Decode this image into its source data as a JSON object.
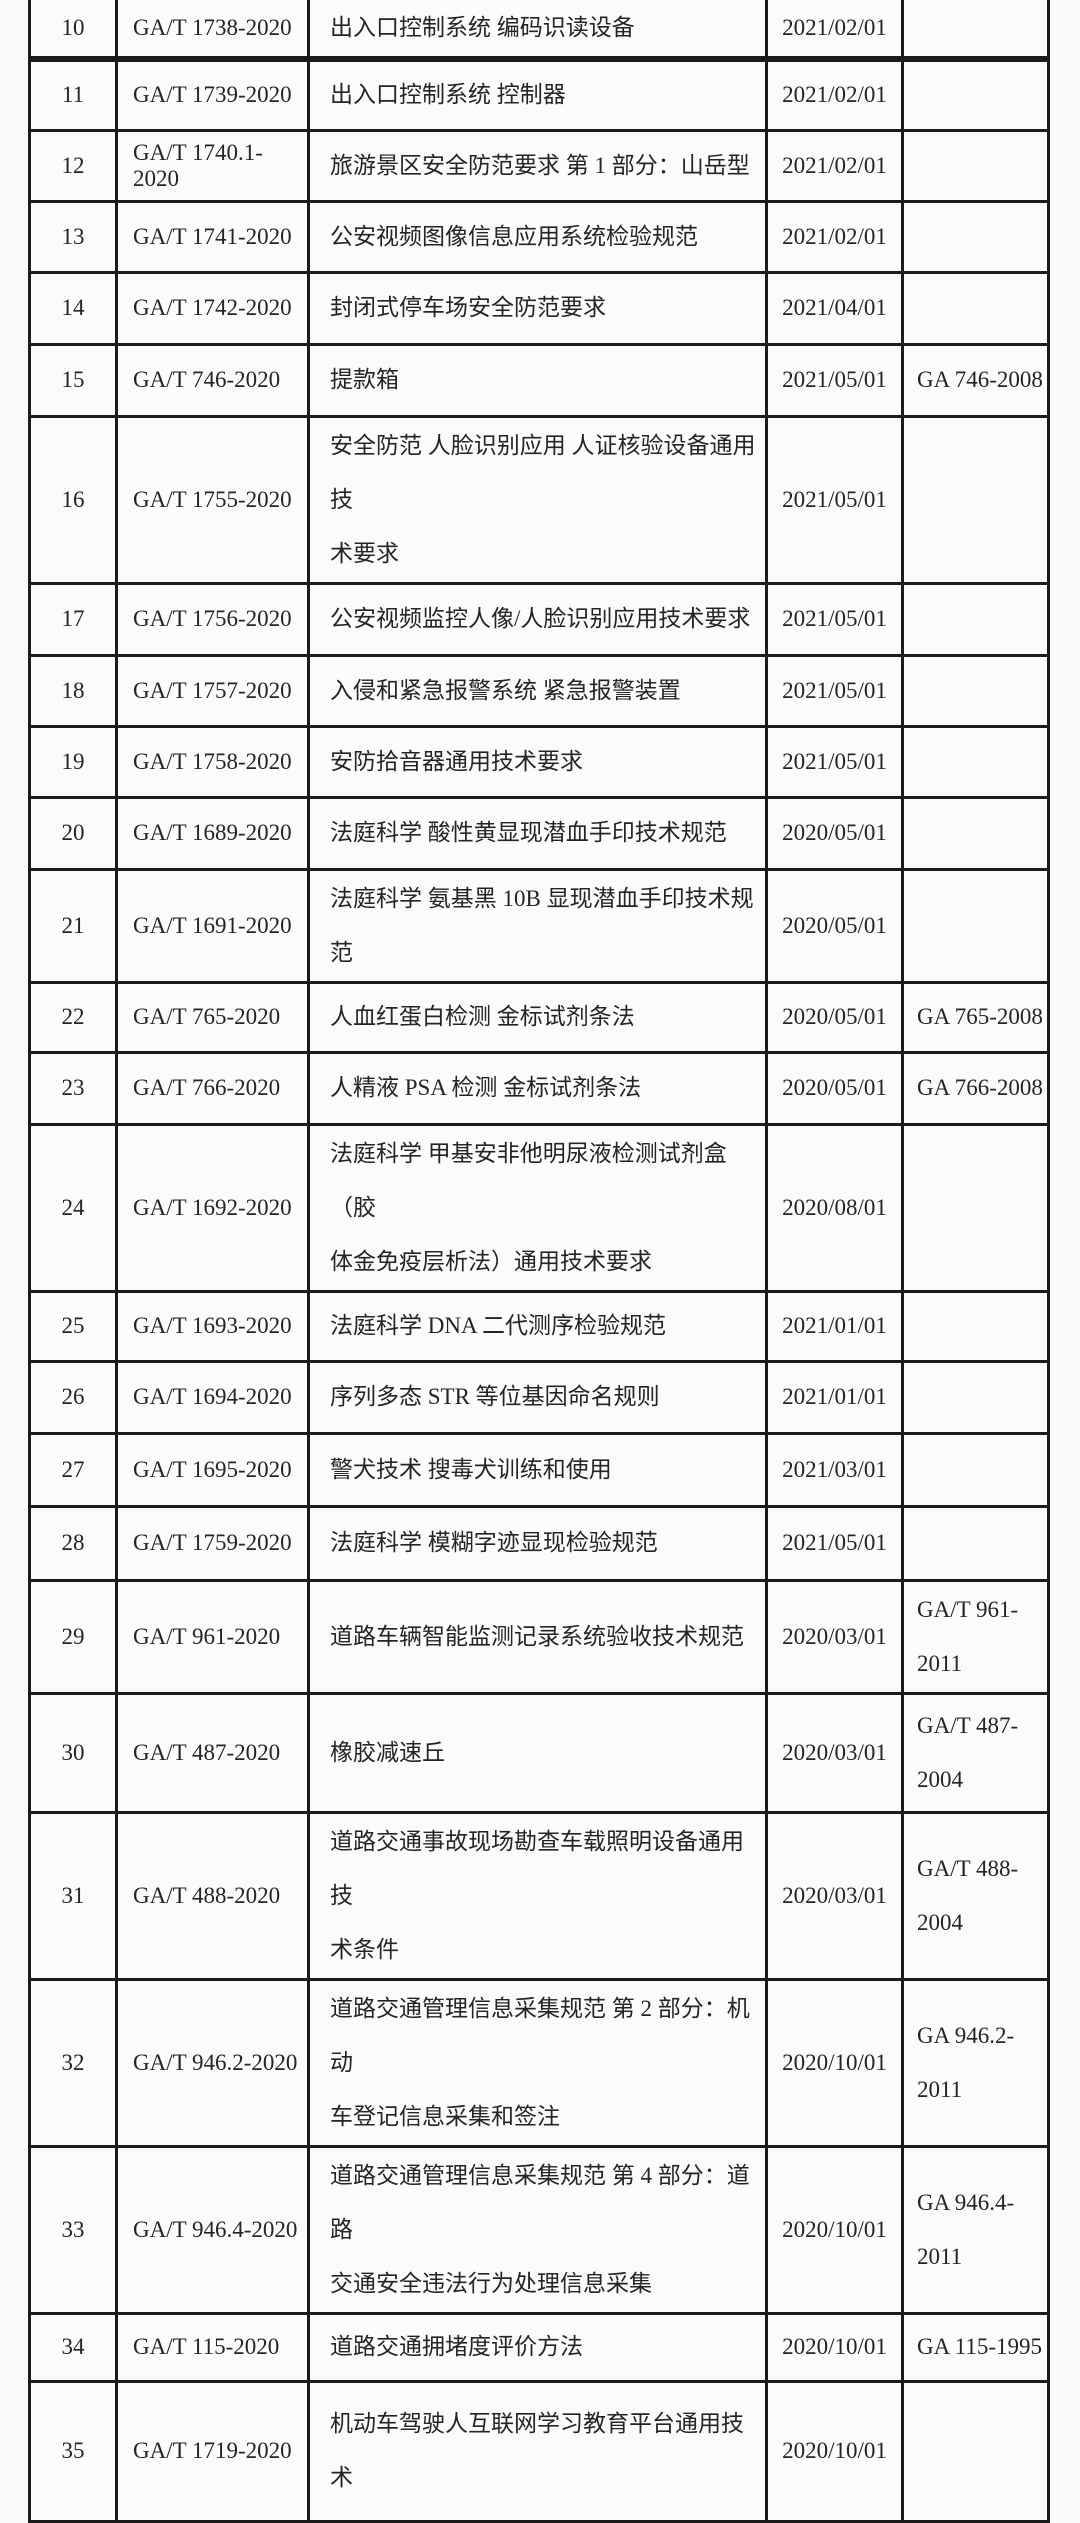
{
  "colors": {
    "paper": "#f9f9f9",
    "grid_ink": "#1b1b1b",
    "text": "#242424"
  },
  "table": {
    "rows": [
      {
        "no": "10",
        "code": "GA/T 1738-2020",
        "name": "出入口控制系统 编码识读设备",
        "date": "2021/02/01",
        "replaces": ""
      },
      {
        "no": "11",
        "code": "GA/T 1739-2020",
        "name": "出入口控制系统 控制器",
        "date": "2021/02/01",
        "replaces": ""
      },
      {
        "no": "12",
        "code": "GA/T 1740.1-2020",
        "name": "旅游景区安全防范要求 第 1 部分：山岳型",
        "date": "2021/02/01",
        "replaces": ""
      },
      {
        "no": "13",
        "code": "GA/T 1741-2020",
        "name": "公安视频图像信息应用系统检验规范",
        "date": "2021/02/01",
        "replaces": ""
      },
      {
        "no": "14",
        "code": "GA/T 1742-2020",
        "name": "封闭式停车场安全防范要求",
        "date": "2021/04/01",
        "replaces": ""
      },
      {
        "no": "15",
        "code": "GA/T 746-2020",
        "name": "提款箱",
        "date": "2021/05/01",
        "replaces": "GA 746-2008"
      },
      {
        "no": "16",
        "code": "GA/T 1755-2020",
        "name": "安全防范 人脸识别应用 人证核验设备通用技\n术要求",
        "date": "2021/05/01",
        "replaces": ""
      },
      {
        "no": "17",
        "code": "GA/T 1756-2020",
        "name": "公安视频监控人像/人脸识别应用技术要求",
        "date": "2021/05/01",
        "replaces": ""
      },
      {
        "no": "18",
        "code": "GA/T 1757-2020",
        "name": "入侵和紧急报警系统 紧急报警装置",
        "date": "2021/05/01",
        "replaces": ""
      },
      {
        "no": "19",
        "code": "GA/T 1758-2020",
        "name": "安防拾音器通用技术要求",
        "date": "2021/05/01",
        "replaces": ""
      },
      {
        "no": "20",
        "code": "GA/T 1689-2020",
        "name": "法庭科学 酸性黄显现潜血手印技术规范",
        "date": "2020/05/01",
        "replaces": ""
      },
      {
        "no": "21",
        "code": "GA/T 1691-2020",
        "name": "法庭科学 氨基黑 10B 显现潜血手印技术规范",
        "date": "2020/05/01",
        "replaces": ""
      },
      {
        "no": "22",
        "code": "GA/T 765-2020",
        "name": "人血红蛋白检测 金标试剂条法",
        "date": "2020/05/01",
        "replaces": "GA 765-2008"
      },
      {
        "no": "23",
        "code": "GA/T 766-2020",
        "name": "人精液 PSA 检测 金标试剂条法",
        "date": "2020/05/01",
        "replaces": "GA 766-2008"
      },
      {
        "no": "24",
        "code": "GA/T 1692-2020",
        "name": "法庭科学 甲基安非他明尿液检测试剂盒（胶\n体金免疫层析法）通用技术要求",
        "date": "2020/08/01",
        "replaces": ""
      },
      {
        "no": "25",
        "code": "GA/T 1693-2020",
        "name": "法庭科学 DNA 二代测序检验规范",
        "date": "2021/01/01",
        "replaces": ""
      },
      {
        "no": "26",
        "code": "GA/T 1694-2020",
        "name": "序列多态 STR 等位基因命名规则",
        "date": "2021/01/01",
        "replaces": ""
      },
      {
        "no": "27",
        "code": "GA/T 1695-2020",
        "name": "警犬技术 搜毒犬训练和使用",
        "date": "2021/03/01",
        "replaces": ""
      },
      {
        "no": "28",
        "code": "GA/T 1759-2020",
        "name": "法庭科学 模糊字迹显现检验规范",
        "date": "2021/05/01",
        "replaces": ""
      },
      {
        "no": "29",
        "code": "GA/T 961-2020",
        "name": "道路车辆智能监测记录系统验收技术规范",
        "date": "2020/03/01",
        "replaces": "GA/T 961-\n2011"
      },
      {
        "no": "30",
        "code": "GA/T 487-2020",
        "name": "橡胶减速丘",
        "date": "2020/03/01",
        "replaces": "GA/T 487-\n2004"
      },
      {
        "no": "31",
        "code": "GA/T 488-2020",
        "name": "道路交通事故现场勘查车载照明设备通用技\n术条件",
        "date": "2020/03/01",
        "replaces": "GA/T 488-\n2004"
      },
      {
        "no": "32",
        "code": "GA/T 946.2-2020",
        "name": "道路交通管理信息采集规范 第 2 部分：机动\n车登记信息采集和签注",
        "date": "2020/10/01",
        "replaces": "GA 946.2-2011"
      },
      {
        "no": "33",
        "code": "GA/T 946.4-2020",
        "name": "道路交通管理信息采集规范 第 4 部分：道路\n交通安全违法行为处理信息采集",
        "date": "2020/10/01",
        "replaces": "GA 946.4-2011"
      },
      {
        "no": "34",
        "code": "GA/T 115-2020",
        "name": "道路交通拥堵度评价方法",
        "date": "2020/10/01",
        "replaces": "GA 115-1995"
      },
      {
        "no": "35",
        "code": "GA/T 1719-2020",
        "name": "机动车驾驶人互联网学习教育平台通用技术",
        "date": "2020/10/01",
        "replaces": ""
      }
    ]
  }
}
